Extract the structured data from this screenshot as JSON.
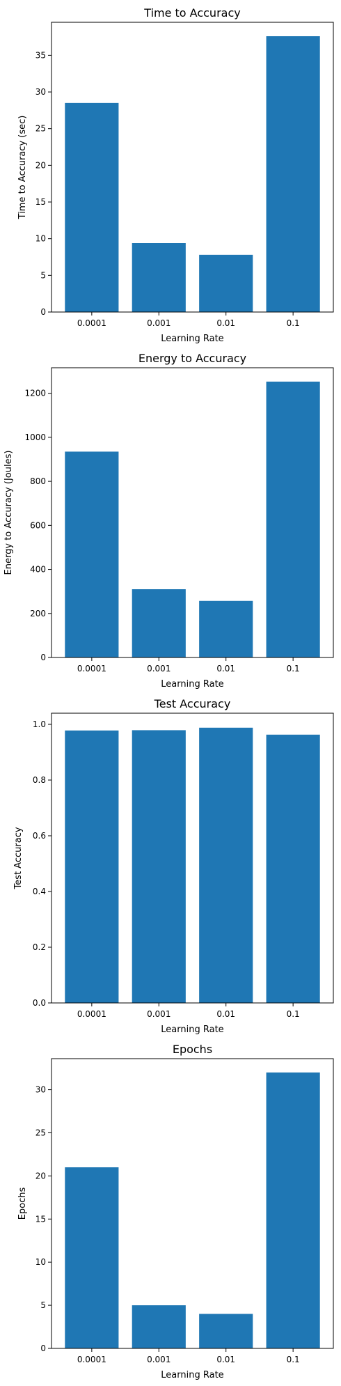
{
  "chart_data": [
    {
      "type": "bar",
      "title": "Time to Accuracy",
      "xlabel": "Learning Rate",
      "ylabel": "Time to Accuracy (sec)",
      "categories": [
        "0.0001",
        "0.001",
        "0.01",
        "0.1"
      ],
      "values": [
        28.5,
        9.4,
        7.8,
        37.6
      ],
      "ylim": [
        0,
        39.5
      ],
      "yticks": [
        0,
        5,
        10,
        15,
        20,
        25,
        30,
        35
      ],
      "ytick_labels": [
        "0",
        "5",
        "10",
        "15",
        "20",
        "25",
        "30",
        "35"
      ],
      "grid": false,
      "color": "#1f77b4"
    },
    {
      "type": "bar",
      "title": "Energy to Accuracy",
      "xlabel": "Learning Rate",
      "ylabel": "Energy to Accuracy (Joules)",
      "categories": [
        "0.0001",
        "0.001",
        "0.01",
        "0.1"
      ],
      "values": [
        935,
        310,
        257,
        1253
      ],
      "ylim": [
        0,
        1316
      ],
      "yticks": [
        0,
        200,
        400,
        600,
        800,
        1000,
        1200
      ],
      "ytick_labels": [
        "0",
        "200",
        "400",
        "600",
        "800",
        "1000",
        "1200"
      ],
      "grid": false,
      "color": "#1f77b4"
    },
    {
      "type": "bar",
      "title": "Test Accuracy",
      "xlabel": "Learning Rate",
      "ylabel": "Test Accuracy",
      "categories": [
        "0.0001",
        "0.001",
        "0.01",
        "0.1"
      ],
      "values": [
        0.978,
        0.979,
        0.988,
        0.963
      ],
      "ylim": [
        0,
        1.04
      ],
      "yticks": [
        0,
        0.2,
        0.4,
        0.6,
        0.8,
        1.0
      ],
      "ytick_labels": [
        "0.0",
        "0.2",
        "0.4",
        "0.6",
        "0.8",
        "1.0"
      ],
      "grid": false,
      "color": "#1f77b4"
    },
    {
      "type": "bar",
      "title": "Epochs",
      "xlabel": "Learning Rate",
      "ylabel": "Epochs",
      "categories": [
        "0.0001",
        "0.001",
        "0.01",
        "0.1"
      ],
      "values": [
        21,
        5,
        4,
        32
      ],
      "ylim": [
        0,
        33.6
      ],
      "yticks": [
        0,
        5,
        10,
        15,
        20,
        25,
        30
      ],
      "ytick_labels": [
        "0",
        "5",
        "10",
        "15",
        "20",
        "25",
        "30"
      ],
      "grid": false,
      "color": "#1f77b4"
    }
  ]
}
